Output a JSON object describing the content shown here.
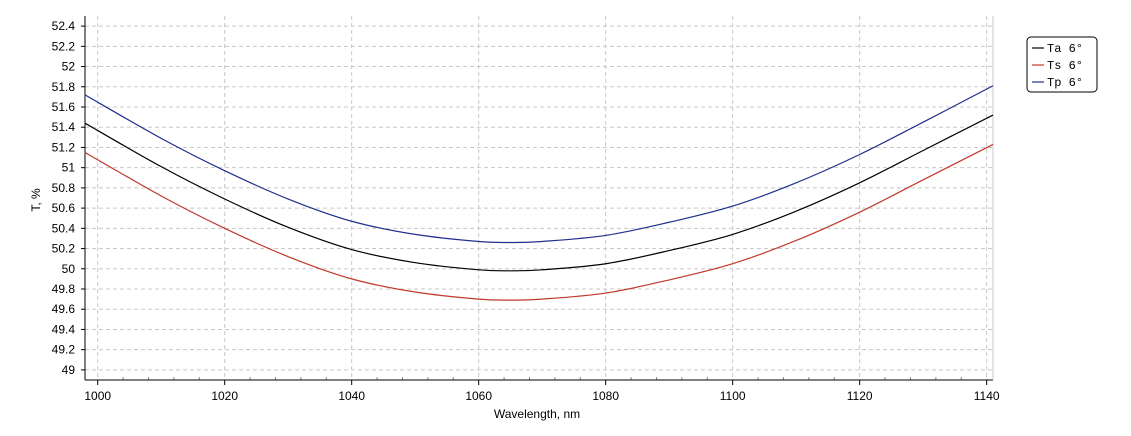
{
  "chart_data": {
    "type": "line",
    "xlabel": "Wavelength, nm",
    "ylabel": "T, %",
    "xlim": [
      998,
      1141
    ],
    "ylim": [
      48.9,
      52.5
    ],
    "x_ticks": [
      1000,
      1020,
      1040,
      1060,
      1080,
      1100,
      1120,
      1140
    ],
    "y_ticks": [
      49,
      49.2,
      49.4,
      49.6,
      49.8,
      50,
      50.2,
      50.4,
      50.6,
      50.8,
      51,
      51.2,
      51.4,
      51.6,
      51.8,
      52,
      52.2,
      52.4
    ],
    "grid": true,
    "legend_position": "top-right",
    "series": [
      {
        "name": "Ta 6°",
        "color": "#000000",
        "x": [
          998,
          1010,
          1020,
          1030,
          1040,
          1050,
          1060,
          1065,
          1070,
          1080,
          1090,
          1100,
          1110,
          1120,
          1130,
          1141
        ],
        "y": [
          51.44,
          51.01,
          50.69,
          50.41,
          50.19,
          50.06,
          49.99,
          49.98,
          49.99,
          50.05,
          50.18,
          50.34,
          50.57,
          50.85,
          51.17,
          51.52
        ]
      },
      {
        "name": "Ts 6°",
        "color": "#c0392b",
        "x": [
          998,
          1010,
          1020,
          1030,
          1040,
          1050,
          1060,
          1065,
          1070,
          1080,
          1090,
          1100,
          1110,
          1120,
          1130,
          1141
        ],
        "y": [
          51.15,
          50.72,
          50.4,
          50.12,
          49.9,
          49.77,
          49.7,
          49.69,
          49.7,
          49.76,
          49.89,
          50.05,
          50.28,
          50.56,
          50.88,
          51.23
        ]
      },
      {
        "name": "Tp 6°",
        "color": "#1f2f8c",
        "x": [
          998,
          1010,
          1020,
          1030,
          1040,
          1050,
          1060,
          1065,
          1070,
          1080,
          1090,
          1100,
          1110,
          1120,
          1130,
          1141
        ],
        "y": [
          51.72,
          51.29,
          50.97,
          50.69,
          50.47,
          50.34,
          50.27,
          50.26,
          50.27,
          50.33,
          50.46,
          50.62,
          50.85,
          51.13,
          51.45,
          51.81
        ]
      }
    ]
  }
}
